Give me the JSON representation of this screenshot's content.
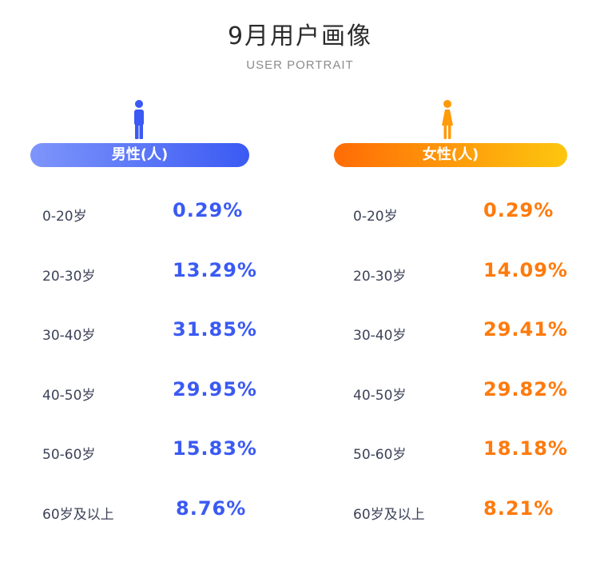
{
  "header": {
    "title": "9月用户画像",
    "subtitle": "USER PORTRAIT"
  },
  "colors": {
    "male_accent": "#3b5af3",
    "female_accent": "#ff7a0c",
    "text_dark": "#3c4258"
  },
  "male": {
    "icon": "male-person-icon",
    "label": "男性(人)",
    "rows": [
      {
        "age": "0-20岁",
        "percent": "0.29%"
      },
      {
        "age": "20-30岁",
        "percent": "13.29%"
      },
      {
        "age": "30-40岁",
        "percent": "31.85%"
      },
      {
        "age": "40-50岁",
        "percent": "29.95%"
      },
      {
        "age": "50-60岁",
        "percent": "15.83%"
      },
      {
        "age": "60岁及以上",
        "percent": "8.76%"
      }
    ]
  },
  "female": {
    "icon": "female-person-icon",
    "label": "女性(人)",
    "rows": [
      {
        "age": "0-20岁",
        "percent": "0.29%"
      },
      {
        "age": "20-30岁",
        "percent": "14.09%"
      },
      {
        "age": "30-40岁",
        "percent": "29.41%"
      },
      {
        "age": "40-50岁",
        "percent": "29.82%"
      },
      {
        "age": "50-60岁",
        "percent": "18.18%"
      },
      {
        "age": "60岁及以上",
        "percent": "8.21%"
      }
    ]
  }
}
